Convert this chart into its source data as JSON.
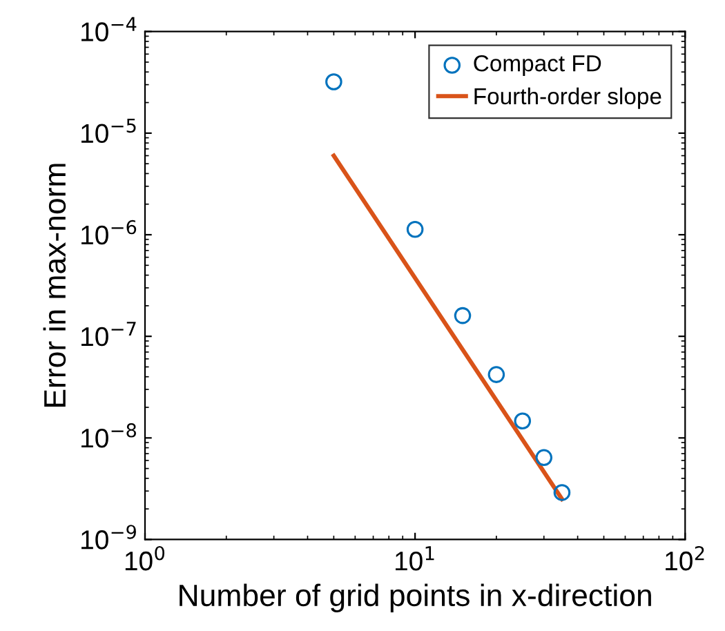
{
  "chart_data": {
    "type": "scatter",
    "xlabel": "Number of grid points in x-direction",
    "ylabel": "Error in max-norm",
    "log": "xy",
    "marker": "circle",
    "legend": "top right",
    "grid": false,
    "xlim": [
      1,
      100
    ],
    "xticks": [
      {
        "value": 1,
        "label": "10$^{0}$"
      },
      {
        "value": 10,
        "label": "10$^{1}$"
      },
      {
        "value": 100,
        "label": "10$^{2}$"
      }
    ],
    "ylim": [
      1e-09,
      0.0001
    ],
    "yticks": [
      {
        "value": 1e-09,
        "label": "10$^{−9}$"
      },
      {
        "value": 1e-08,
        "label": "10$^{−8}$"
      },
      {
        "value": 1e-07,
        "label": "10$^{−7}$"
      },
      {
        "value": 1e-06,
        "label": "10$^{−6}$"
      },
      {
        "value": 1e-05,
        "label": "10$^{−5}$"
      },
      {
        "value": 0.0001,
        "label": "10$^{−4}$"
      }
    ],
    "series": [
      {
        "name": "Compact FD",
        "color": "#0072bd",
        "x": [
          5,
          10,
          15,
          20,
          25,
          30,
          35
        ],
        "values": [
          3.2e-05,
          1.13e-06,
          1.6e-07,
          4.2e-08,
          1.47e-08,
          6.4e-09,
          2.9e-09
        ]
      },
      {
        "name": "Fourth-order slope",
        "type": "line",
        "color": "#d95319",
        "marker": "none",
        "line_style": "solid",
        "x": [
          5,
          35
        ],
        "values": [
          6e-06,
          2.5e-09
        ]
      }
    ]
  }
}
